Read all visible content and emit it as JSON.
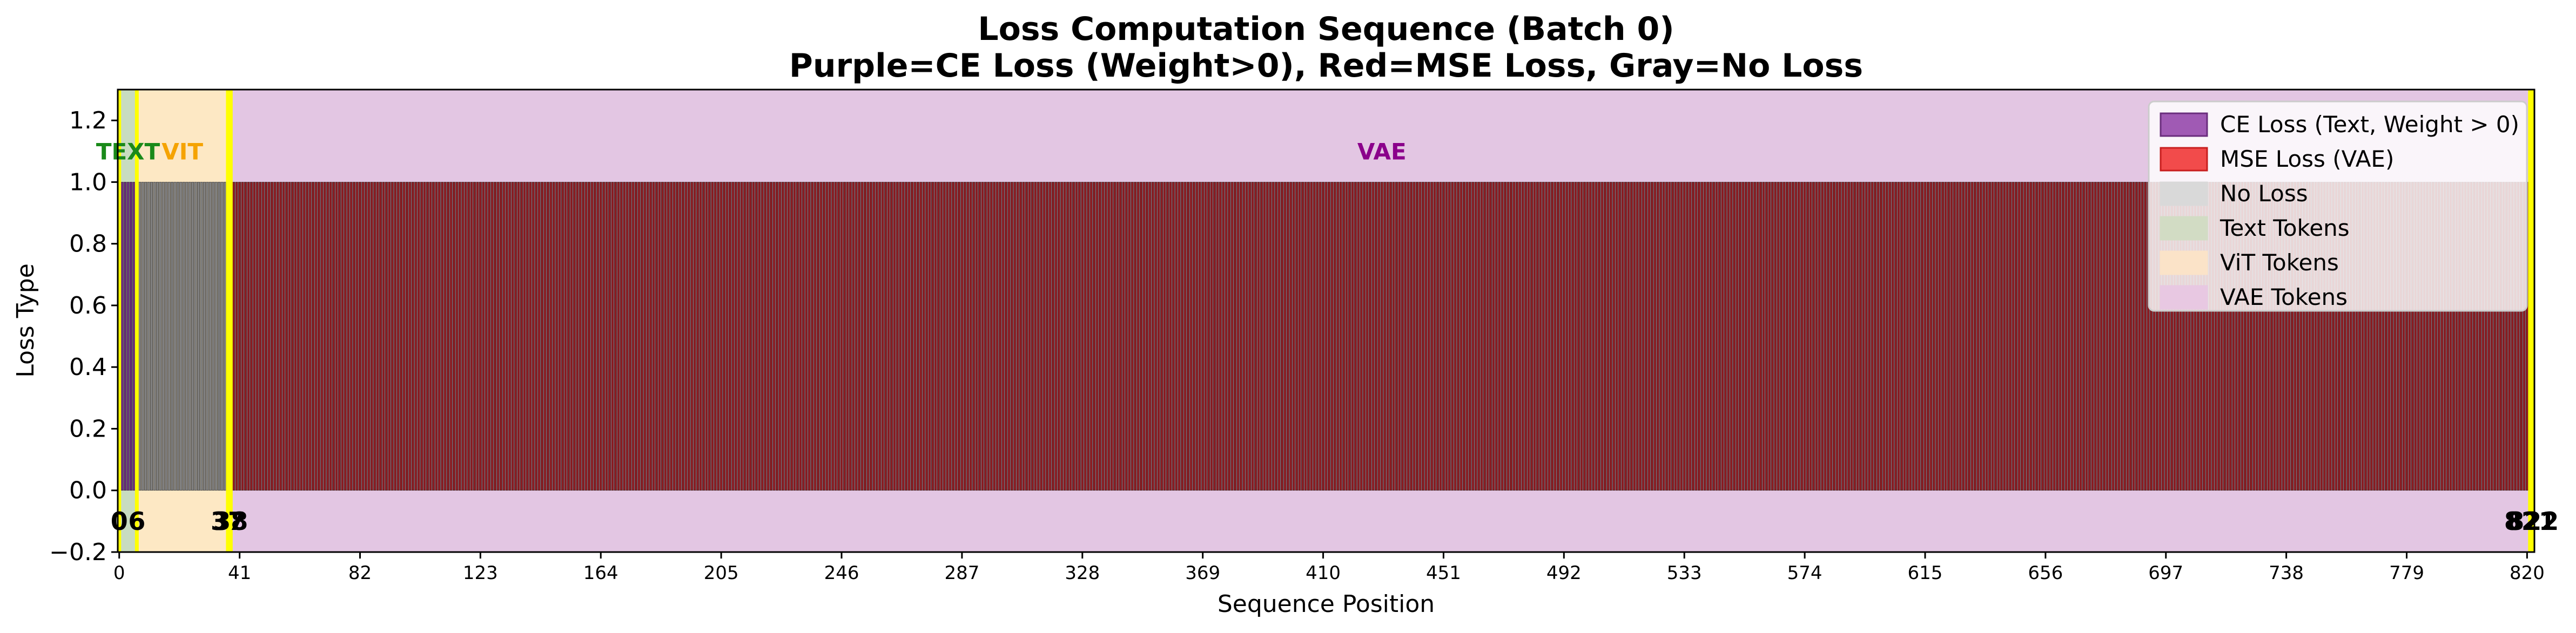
{
  "chart_data": {
    "type": "bar",
    "title": "Loss Computation Sequence (Batch 0)",
    "subtitle": "Purple=CE Loss (Weight>0), Red=MSE Loss, Gray=No Loss",
    "xlabel": "Sequence Position",
    "ylabel": "Loss Type",
    "xlim": [
      -0.5,
      822.5
    ],
    "ylim": [
      -0.2,
      1.3
    ],
    "x_ticks": [
      0,
      41,
      82,
      123,
      164,
      205,
      246,
      287,
      328,
      369,
      410,
      451,
      492,
      533,
      574,
      615,
      656,
      697,
      738,
      779,
      820
    ],
    "y_ticks": [
      "−0.2",
      "0.0",
      "0.2",
      "0.4",
      "0.6",
      "0.8",
      "1.0",
      "1.2"
    ],
    "y_tick_values": [
      -0.2,
      0,
      0.2,
      0.4,
      0.6,
      0.8,
      1.0,
      1.2
    ],
    "sequence_length": 823,
    "bar_value": 1.0,
    "segments": [
      {
        "loss": "CE Loss (Text, Weight > 0)",
        "start": 0,
        "end": 6,
        "color": "#6a2d7d"
      },
      {
        "loss": "No Loss",
        "start": 6,
        "end": 37,
        "color": "#808080"
      },
      {
        "loss": "MSE Loss (VAE)",
        "start": 38,
        "end": 821,
        "color": "#8b1c22"
      }
    ],
    "regions": [
      {
        "name": "TEXT",
        "start": 0,
        "end": 6,
        "color": "#c8dcc0",
        "label_color": "#1a8a1a"
      },
      {
        "name": "ViT",
        "start": 6,
        "end": 37,
        "color": "#fde8c4",
        "label_color": "#f5a300"
      },
      {
        "name": "VAE",
        "start": 38,
        "end": 822,
        "color": "#e3c6e3",
        "label_color": "#8b008b"
      }
    ],
    "boundary_lines": [
      0,
      6,
      37,
      38,
      821,
      822
    ],
    "boundary_color": "#ffff00",
    "markers": [
      {
        "label": "0",
        "x": 0
      },
      {
        "label": "6",
        "x": 6
      },
      {
        "label": "37",
        "x": 37
      },
      {
        "label": "38",
        "x": 38
      },
      {
        "label": "821",
        "x": 821
      },
      {
        "label": "822",
        "x": 822
      }
    ],
    "legend_position": "top-right",
    "legend": [
      {
        "label": "CE Loss (Text, Weight > 0)",
        "color": "#a05ab4",
        "edge": "#6a2d7d"
      },
      {
        "label": "MSE Loss (VAE)",
        "color": "#f24b4b",
        "edge": "#c81e1e"
      },
      {
        "label": "No Loss",
        "color": "#d9d9d9",
        "edge": "#d9d9d9"
      },
      {
        "label": "Text Tokens",
        "color": "#d2dcc4",
        "edge": "#d2dcc4"
      },
      {
        "label": "ViT Tokens",
        "color": "#fbe3c8",
        "edge": "#fbe3c8"
      },
      {
        "label": "VAE Tokens",
        "color": "#e8c8e2",
        "edge": "#e8c8e2"
      }
    ]
  }
}
